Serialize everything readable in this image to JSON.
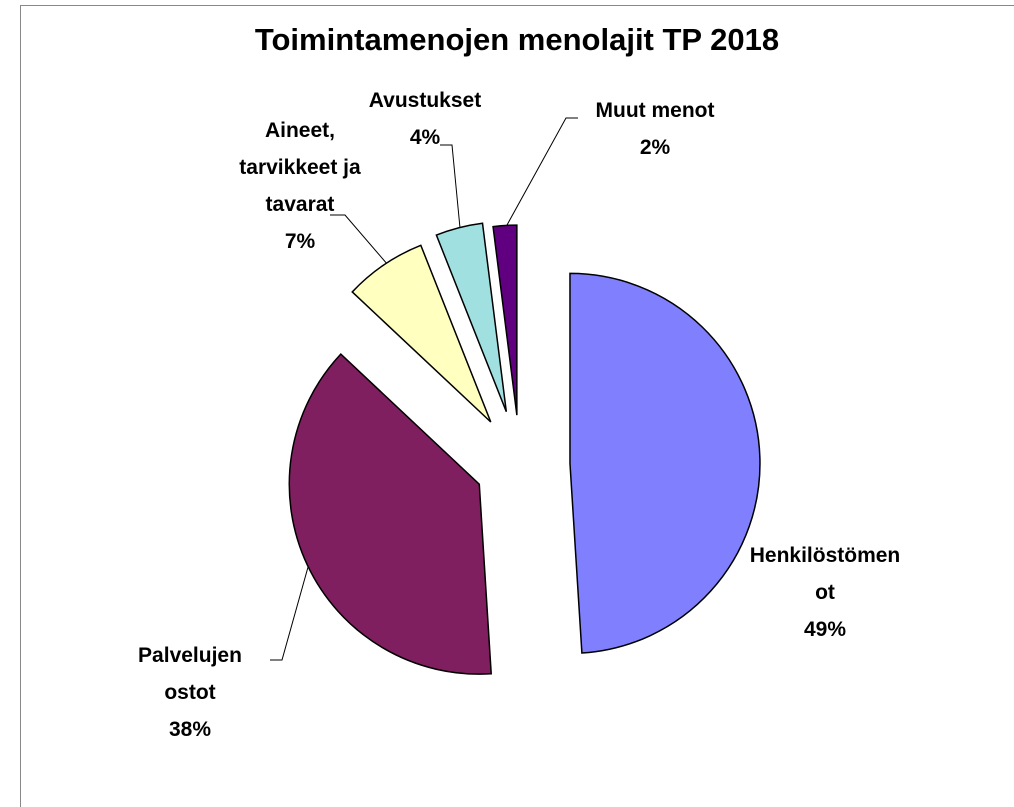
{
  "chart_data": {
    "type": "pie",
    "title": "Toimintamenojen menolajit TP 2018",
    "categories": [
      "Henkilöstömenot",
      "Palvelujen ostot",
      "Aineet, tarvikkeet ja tavarat",
      "Avustukset",
      "Muut menot"
    ],
    "values": [
      49,
      38,
      7,
      4,
      2
    ],
    "value_labels": [
      "49%",
      "38%",
      "7%",
      "4%",
      "2%"
    ],
    "colors": [
      "#8080ff",
      "#7f1f5f",
      "#ffffc0",
      "#a0e0e0",
      "#600080"
    ]
  }
}
